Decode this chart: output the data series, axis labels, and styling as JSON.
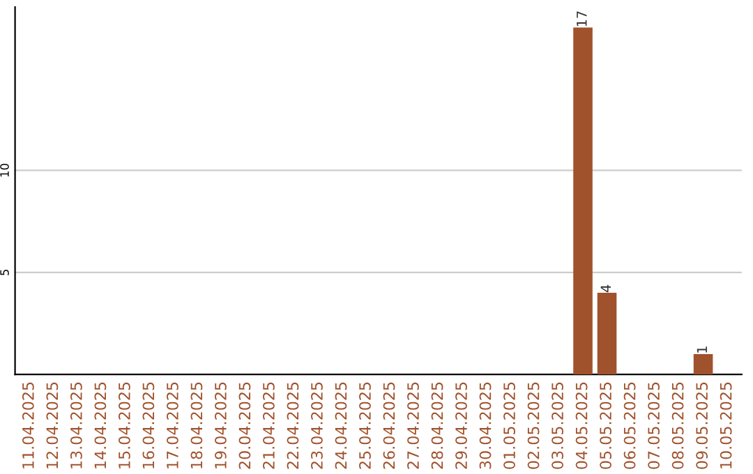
{
  "chart_data": {
    "type": "bar",
    "categories": [
      "11.04.2025",
      "12.04.2025",
      "13.04.2025",
      "14.04.2025",
      "15.04.2025",
      "16.04.2025",
      "17.04.2025",
      "18.04.2025",
      "19.04.2025",
      "20.04.2025",
      "21.04.2025",
      "22.04.2025",
      "23.04.2025",
      "24.04.2025",
      "25.04.2025",
      "26.04.2025",
      "27.04.2025",
      "28.04.2025",
      "29.04.2025",
      "30.04.2025",
      "01.05.2025",
      "02.05.2025",
      "03.05.2025",
      "04.05.2025",
      "05.05.2025",
      "06.05.2025",
      "07.05.2025",
      "08.05.2025",
      "09.05.2025",
      "10.05.2025"
    ],
    "values": [
      0,
      0,
      0,
      0,
      0,
      0,
      0,
      0,
      0,
      0,
      0,
      0,
      0,
      0,
      0,
      0,
      0,
      0,
      0,
      0,
      0,
      0,
      0,
      17,
      4,
      0,
      0,
      0,
      1,
      0
    ],
    "value_labels": [
      null,
      null,
      null,
      null,
      null,
      null,
      null,
      null,
      null,
      null,
      null,
      null,
      null,
      null,
      null,
      null,
      null,
      null,
      null,
      null,
      null,
      null,
      null,
      "17",
      "4",
      null,
      null,
      null,
      "1",
      null
    ],
    "color": "#a0522d",
    "ylim": [
      0,
      18
    ],
    "yticks": [
      5,
      10
    ],
    "grid": "y"
  }
}
